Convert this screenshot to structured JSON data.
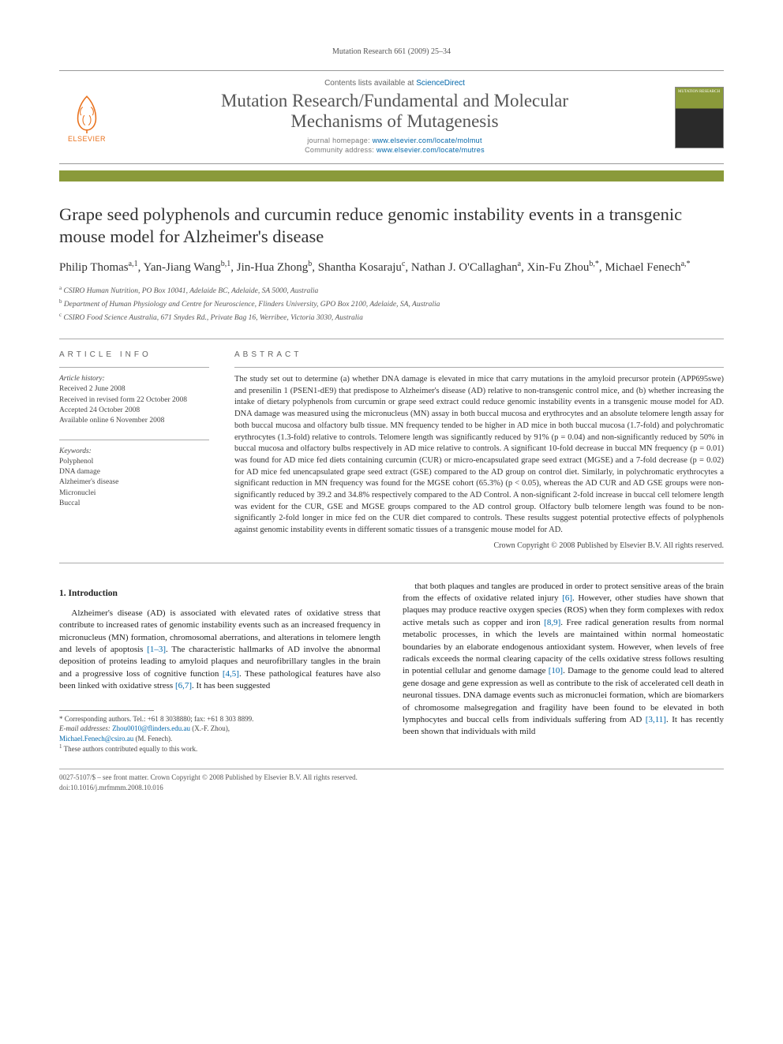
{
  "running_head": "Mutation Research 661 (2009) 25–34",
  "masthead": {
    "contents_prefix": "Contents lists available at ",
    "contents_link": "ScienceDirect",
    "journal_name_line1": "Mutation Research/Fundamental and Molecular",
    "journal_name_line2": "Mechanisms of Mutagenesis",
    "homepage_label": "journal homepage: ",
    "homepage_url": "www.elsevier.com/locate/molmut",
    "community_label": "Community address: ",
    "community_url": "www.elsevier.com/locate/mutres",
    "elsevier_wordmark": "ELSEVIER",
    "cover_caption": "MUTATION RESEARCH"
  },
  "title": "Grape seed polyphenols and curcumin reduce genomic instability events in a transgenic mouse model for Alzheimer's disease",
  "authors_html": "Philip Thomas<span class='sup'>a,1</span>, Yan-Jiang Wang<span class='sup'>b,1</span>, Jin-Hua Zhong<span class='sup'>b</span>, Shantha Kosaraju<span class='sup'>c</span>, Nathan J. O'Callaghan<span class='sup'>a</span>, Xin-Fu Zhou<span class='sup'>b,*</span>, Michael Fenech<span class='sup'>a,*</span>",
  "affiliations": [
    {
      "sup": "a",
      "text": "CSIRO Human Nutrition, PO Box 10041, Adelaide BC, Adelaide, SA 5000, Australia"
    },
    {
      "sup": "b",
      "text": "Department of Human Physiology and Centre for Neuroscience, Flinders University, GPO Box 2100, Adelaide, SA, Australia"
    },
    {
      "sup": "c",
      "text": "CSIRO Food Science Australia, 671 Snydes Rd., Private Bag 16, Werribee, Victoria 3030, Australia"
    }
  ],
  "article_info": {
    "label": "ARTICLE INFO",
    "history_hd": "Article history:",
    "history": [
      "Received 2 June 2008",
      "Received in revised form 22 October 2008",
      "Accepted 24 October 2008",
      "Available online 6 November 2008"
    ],
    "keywords_hd": "Keywords:",
    "keywords": [
      "Polyphenol",
      "DNA damage",
      "Alzheimer's disease",
      "Micronuclei",
      "Buccal"
    ]
  },
  "abstract": {
    "label": "ABSTRACT",
    "text": "The study set out to determine (a) whether DNA damage is elevated in mice that carry mutations in the amyloid precursor protein (APP695swe) and presenilin 1 (PSEN1-dE9) that predispose to Alzheimer's disease (AD) relative to non-transgenic control mice, and (b) whether increasing the intake of dietary polyphenols from curcumin or grape seed extract could reduce genomic instability events in a transgenic mouse model for AD. DNA damage was measured using the micronucleus (MN) assay in both buccal mucosa and erythrocytes and an absolute telomere length assay for both buccal mucosa and olfactory bulb tissue. MN frequency tended to be higher in AD mice in both buccal mucosa (1.7-fold) and polychromatic erythrocytes (1.3-fold) relative to controls. Telomere length was significantly reduced by 91% (p = 0.04) and non-significantly reduced by 50% in buccal mucosa and olfactory bulbs respectively in AD mice relative to controls. A significant 10-fold decrease in buccal MN frequency (p = 0.01) was found for AD mice fed diets containing curcumin (CUR) or micro-encapsulated grape seed extract (MGSE) and a 7-fold decrease (p = 0.02) for AD mice fed unencapsulated grape seed extract (GSE) compared to the AD group on control diet. Similarly, in polychromatic erythrocytes a significant reduction in MN frequency was found for the MGSE cohort (65.3%) (p < 0.05), whereas the AD CUR and AD GSE groups were non-significantly reduced by 39.2 and 34.8% respectively compared to the AD Control. A non-significant 2-fold increase in buccal cell telomere length was evident for the CUR, GSE and MGSE groups compared to the AD control group. Olfactory bulb telomere length was found to be non-significantly 2-fold longer in mice fed on the CUR diet compared to controls. These results suggest potential protective effects of polyphenols against genomic instability events in different somatic tissues of a transgenic mouse model for AD.",
    "crown": "Crown Copyright © 2008 Published by Elsevier B.V. All rights reserved."
  },
  "body": {
    "section1_hd": "1. Introduction",
    "para1": "Alzheimer's disease (AD) is associated with elevated rates of oxidative stress that contribute to increased rates of genomic instability events such as an increased frequency in micronucleus (MN) formation, chromosomal aberrations, and alterations in telomere length and levels of apoptosis [1–3]. The characteristic hallmarks of AD involve the abnormal deposition of proteins leading to amyloid plaques and neurofibrillary tangles in the brain and a progressive loss of cognitive function [4,5]. These pathological features have also been linked with oxidative stress [6,7]. It has been suggested",
    "para2": "that both plaques and tangles are produced in order to protect sensitive areas of the brain from the effects of oxidative related injury [6]. However, other studies have shown that plaques may produce reactive oxygen species (ROS) when they form complexes with redox active metals such as copper and iron [8,9]. Free radical generation results from normal metabolic processes, in which the levels are maintained within normal homeostatic boundaries by an elaborate endogenous antioxidant system. However, when levels of free radicals exceeds the normal clearing capacity of the cells oxidative stress follows resulting in potential cellular and genome damage [10]. Damage to the genome could lead to altered gene dosage and gene expression as well as contribute to the risk of accelerated cell death in neuronal tissues. DNA damage events such as micronuclei formation, which are biomarkers of chromosome malsegregation and fragility have been found to be elevated in both lymphocytes and buccal cells from individuals suffering from AD [3,11]. It has recently been shown that individuals with mild"
  },
  "footnotes": {
    "corr": "* Corresponding authors. Tel.: +61 8 3038880; fax: +61 8 303 8899.",
    "emails_label": "E-mail addresses: ",
    "email1": "Zhou0010@flinders.edu.au",
    "email1_who": " (X.-F. Zhou),",
    "email2": "Michael.Fenech@csiro.au",
    "email2_who": " (M. Fenech).",
    "equal": "1 These authors contributed equally to this work."
  },
  "footer": {
    "line1": "0027-5107/$ – see front matter. Crown Copyright © 2008 Published by Elsevier B.V. All rights reserved.",
    "line2": "doi:10.1016/j.mrfmmm.2008.10.016"
  },
  "colors": {
    "accent": "#8a9a3a",
    "link": "#0066aa",
    "elsevier": "#e9711c"
  }
}
